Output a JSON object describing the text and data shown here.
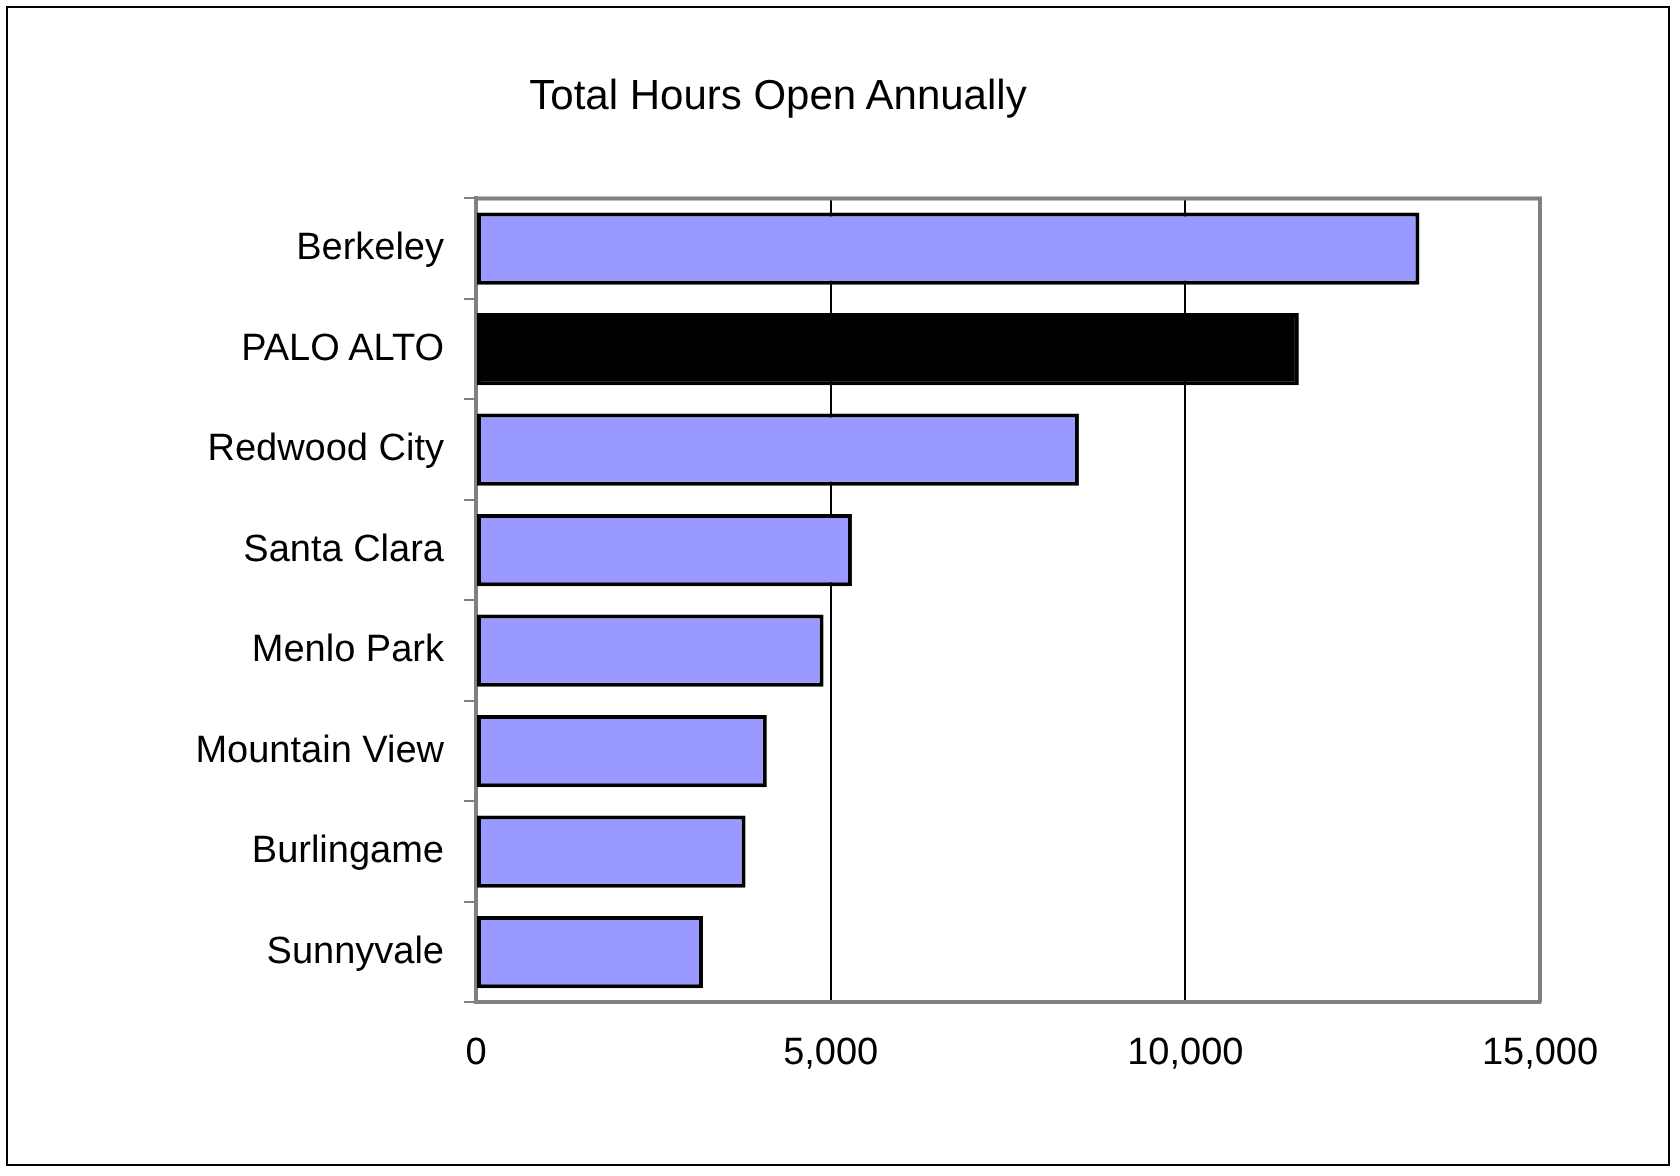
{
  "chart_data": {
    "type": "bar",
    "orientation": "horizontal",
    "title": "Total Hours Open Annually",
    "categories": [
      "Berkeley",
      "PALO ALTO",
      "Redwood City",
      "Santa Clara",
      "Menlo Park",
      "Mountain View",
      "Burlingame",
      "Sunnyvale"
    ],
    "values": [
      13300,
      11600,
      8500,
      5300,
      4900,
      4100,
      3800,
      3200
    ],
    "colors": [
      "#9999ff",
      "#000000",
      "#9999ff",
      "#9999ff",
      "#9999ff",
      "#9999ff",
      "#9999ff",
      "#9999ff"
    ],
    "xlim": [
      0,
      15000
    ],
    "xticks": [
      0,
      {
        "value": 5000,
        "label": "5,000"
      },
      {
        "value": 10000,
        "label": "10,000"
      },
      {
        "value": 15000,
        "label": "15,000"
      }
    ],
    "grid": "x",
    "legend": false
  }
}
